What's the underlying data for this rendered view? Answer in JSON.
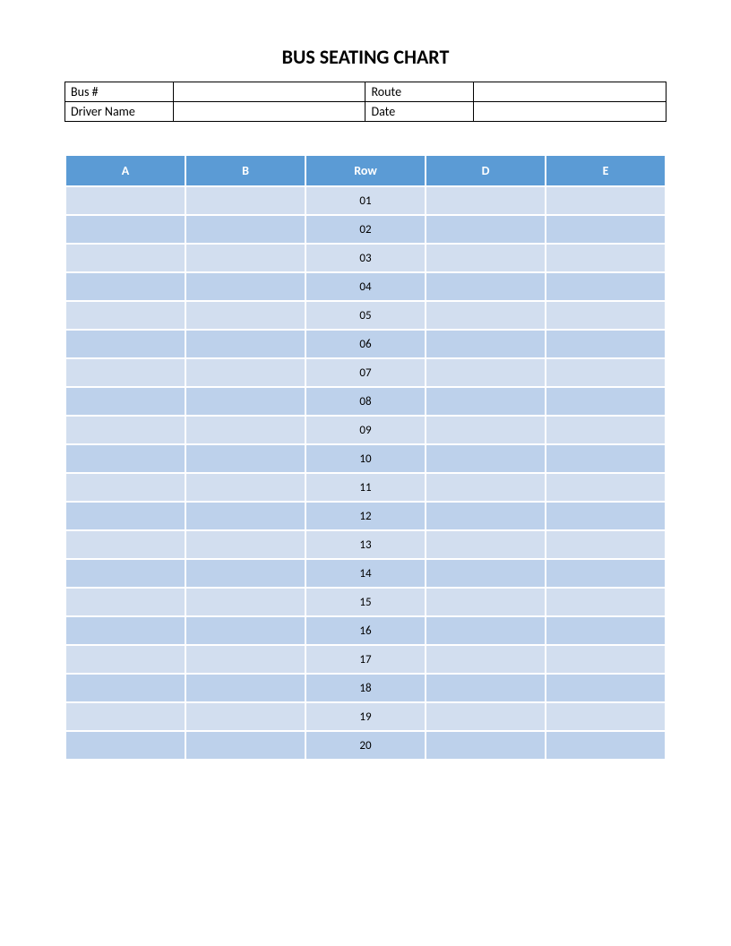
{
  "title": "BUS SEATING CHART",
  "info": {
    "bus_label": "Bus #",
    "bus_value": "",
    "route_label": "Route",
    "route_value": "",
    "driver_label": "Driver Name",
    "driver_value": "",
    "date_label": "Date",
    "date_value": ""
  },
  "seating": {
    "type": "table",
    "header_bg_color": "#5b9bd5",
    "header_text_color": "#ffffff",
    "row_odd_bg": "#d2deef",
    "row_even_bg": "#bdd1eb",
    "columns": [
      "A",
      "B",
      "Row",
      "D",
      "E"
    ],
    "rows": [
      {
        "A": "",
        "B": "",
        "Row": "01",
        "D": "",
        "E": ""
      },
      {
        "A": "",
        "B": "",
        "Row": "02",
        "D": "",
        "E": ""
      },
      {
        "A": "",
        "B": "",
        "Row": "03",
        "D": "",
        "E": ""
      },
      {
        "A": "",
        "B": "",
        "Row": "04",
        "D": "",
        "E": ""
      },
      {
        "A": "",
        "B": "",
        "Row": "05",
        "D": "",
        "E": ""
      },
      {
        "A": "",
        "B": "",
        "Row": "06",
        "D": "",
        "E": ""
      },
      {
        "A": "",
        "B": "",
        "Row": "07",
        "D": "",
        "E": ""
      },
      {
        "A": "",
        "B": "",
        "Row": "08",
        "D": "",
        "E": ""
      },
      {
        "A": "",
        "B": "",
        "Row": "09",
        "D": "",
        "E": ""
      },
      {
        "A": "",
        "B": "",
        "Row": "10",
        "D": "",
        "E": ""
      },
      {
        "A": "",
        "B": "",
        "Row": "11",
        "D": "",
        "E": ""
      },
      {
        "A": "",
        "B": "",
        "Row": "12",
        "D": "",
        "E": ""
      },
      {
        "A": "",
        "B": "",
        "Row": "13",
        "D": "",
        "E": ""
      },
      {
        "A": "",
        "B": "",
        "Row": "14",
        "D": "",
        "E": ""
      },
      {
        "A": "",
        "B": "",
        "Row": "15",
        "D": "",
        "E": ""
      },
      {
        "A": "",
        "B": "",
        "Row": "16",
        "D": "",
        "E": ""
      },
      {
        "A": "",
        "B": "",
        "Row": "17",
        "D": "",
        "E": ""
      },
      {
        "A": "",
        "B": "",
        "Row": "18",
        "D": "",
        "E": ""
      },
      {
        "A": "",
        "B": "",
        "Row": "19",
        "D": "",
        "E": ""
      },
      {
        "A": "",
        "B": "",
        "Row": "20",
        "D": "",
        "E": ""
      }
    ]
  }
}
